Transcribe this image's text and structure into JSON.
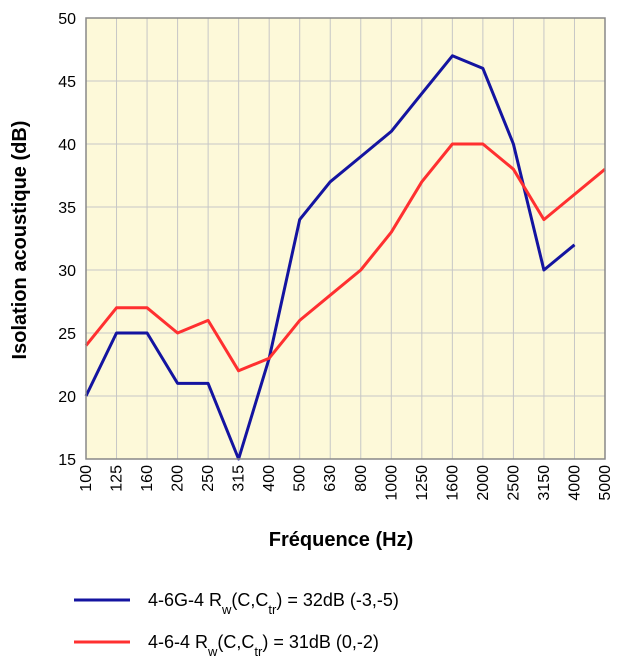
{
  "chart_data": {
    "type": "line",
    "xlabel": "Fréquence (Hz)",
    "ylabel": "Isolation acoustique (dB)",
    "ylim": [
      15,
      50
    ],
    "yticks": [
      15,
      20,
      25,
      30,
      35,
      40,
      45,
      50
    ],
    "grid": true,
    "background": "#fdf9d9",
    "gridColor": "#c6c6c6",
    "categories": [
      "100",
      "125",
      "160",
      "200",
      "250",
      "315",
      "400",
      "500",
      "630",
      "800",
      "1000",
      "1250",
      "1600",
      "2000",
      "2500",
      "3150",
      "4000",
      "5000"
    ],
    "series": [
      {
        "name": "4-6G-4",
        "legend": {
          "prefix": "4-6G-4 R",
          "sub": "w",
          "mid": "(C,C",
          "sub2": "tr",
          "suffix": ") = 32dB (-3,-5)"
        },
        "color": "#1414a0",
        "values": [
          20,
          25,
          25,
          21,
          21,
          15,
          23,
          34,
          37,
          39,
          41,
          44,
          47,
          46,
          40,
          30,
          32,
          null
        ]
      },
      {
        "name": "4-6-4",
        "legend": {
          "prefix": "4-6-4 R",
          "sub": "w",
          "mid": "(C,C",
          "sub2": "tr",
          "suffix": ") = 31dB (0,-2)"
        },
        "color": "#ff3030",
        "values": [
          24,
          27,
          27,
          25,
          26,
          22,
          23,
          26,
          28,
          30,
          33,
          37,
          40,
          40,
          38,
          34,
          36,
          38
        ]
      }
    ]
  }
}
